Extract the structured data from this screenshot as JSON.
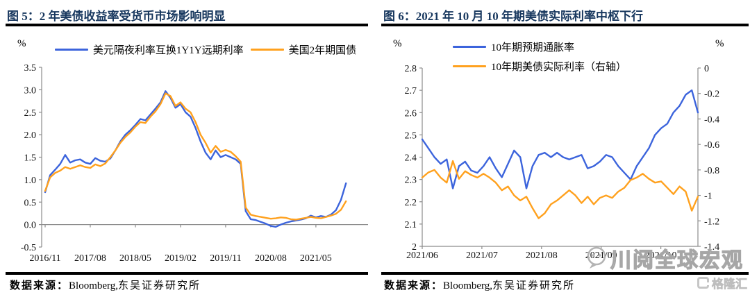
{
  "panels": {
    "left": {
      "title": "图 5：2 年美债收益率受货币市场影响明显",
      "unit": "%",
      "source": {
        "label": "数据来源：",
        "en": "Bloomberg,",
        "cn": "东吴证券研究所"
      }
    },
    "right": {
      "title": "图 6：2021 年 10 月 10 年期美债实际利率中枢下行",
      "unit_left": "%",
      "unit_right": "%",
      "source": {
        "label": "数据来源：",
        "en": "Bloomberg,",
        "cn": "东吴证券研究所"
      }
    }
  },
  "watermark": {
    "text": "川阅全球宏观",
    "brand": "格隆汇"
  },
  "colors": {
    "blue": "#3c64dc",
    "orange": "#ffa11e",
    "title_navy": "#17375e",
    "axis_gray": "#8c8c8c",
    "watermark_gray": "#c6c6c6"
  },
  "chart_data": [
    {
      "type": "line",
      "title": "2 年美债收益率受货币市场影响明显",
      "xlabel": "",
      "ylabel": "%",
      "ylim": [
        -0.5,
        3.5
      ],
      "y_tick_labels": [
        "3.5",
        "3.0",
        "2.5",
        "2.0",
        "1.5",
        "1.0",
        "0.5",
        "0.0",
        "-0.5"
      ],
      "x_axis_at_y": 0.0,
      "grid": false,
      "legend_position": "top",
      "x_tick_labels": [
        "2016/11",
        "2017/08",
        "2018/05",
        "2019/02",
        "2019/11",
        "2020/08",
        "2021/05"
      ],
      "x_tick_positions_months": [
        0,
        9,
        18,
        27,
        36,
        45,
        54
      ],
      "x_domain_months": [
        0,
        64.5
      ],
      "x_start": "2016/11",
      "x_step": "1 month",
      "series": [
        {
          "name": "美元隔夜利率互换1Y1Y远期利率",
          "color_key": "blue",
          "values": [
            0.72,
            1.1,
            1.22,
            1.35,
            1.55,
            1.38,
            1.43,
            1.45,
            1.38,
            1.35,
            1.48,
            1.42,
            1.4,
            1.47,
            1.65,
            1.85,
            2.0,
            2.1,
            2.22,
            2.35,
            2.32,
            2.45,
            2.58,
            2.72,
            2.97,
            2.82,
            2.6,
            2.68,
            2.5,
            2.4,
            2.15,
            1.85,
            1.6,
            1.45,
            1.65,
            1.5,
            1.55,
            1.5,
            1.45,
            1.35,
            0.3,
            0.12,
            0.1,
            0.06,
            0.02,
            -0.03,
            -0.05,
            0.0,
            0.04,
            0.07,
            0.09,
            0.11,
            0.14,
            0.2,
            0.16,
            0.19,
            0.17,
            0.22,
            0.32,
            0.55,
            0.92
          ]
        },
        {
          "name": "美国2年期国债",
          "color_key": "orange",
          "values": [
            0.75,
            1.05,
            1.15,
            1.2,
            1.28,
            1.24,
            1.28,
            1.32,
            1.28,
            1.26,
            1.34,
            1.3,
            1.36,
            1.5,
            1.65,
            1.82,
            1.95,
            2.05,
            2.18,
            2.28,
            2.26,
            2.4,
            2.52,
            2.68,
            2.92,
            2.86,
            2.64,
            2.72,
            2.58,
            2.5,
            2.28,
            2.0,
            1.82,
            1.6,
            1.75,
            1.62,
            1.66,
            1.62,
            1.52,
            1.4,
            0.38,
            0.22,
            0.19,
            0.17,
            0.15,
            0.13,
            0.14,
            0.16,
            0.15,
            0.12,
            0.11,
            0.13,
            0.15,
            0.17,
            0.15,
            0.14,
            0.17,
            0.2,
            0.24,
            0.33,
            0.52
          ]
        }
      ]
    },
    {
      "type": "line",
      "title": "2021 年 10 月 10 年期美债实际利率中枢下行",
      "grid": false,
      "legend_position": "top",
      "x_tick_labels": [
        "2021/06",
        "2021/07",
        "2021/08",
        "2021/09",
        "2021/10"
      ],
      "x_tick_positions_months": [
        0,
        1,
        2,
        3,
        4
      ],
      "x_domain_months": [
        0,
        4.62
      ],
      "axes": {
        "left": {
          "unit": "%",
          "ylim": [
            2,
            2.8
          ],
          "y_tick_labels": [
            "2.8",
            "2.7",
            "2.6",
            "2.5",
            "2.4",
            "2.3",
            "2.2",
            "2.1",
            "2"
          ]
        },
        "right": {
          "unit": "%",
          "ylim": [
            -1.4,
            0
          ],
          "y_tick_labels": [
            "0",
            "-0.2",
            "-0.4",
            "-0.6",
            "-0.8",
            "-1",
            "-1.2",
            "-1.4"
          ]
        }
      },
      "series": [
        {
          "name": "10年期预期通胀率",
          "axis": "left",
          "color_key": "blue",
          "values": [
            2.48,
            2.44,
            2.4,
            2.37,
            2.39,
            2.26,
            2.36,
            2.38,
            2.34,
            2.33,
            2.36,
            2.4,
            2.35,
            2.31,
            2.37,
            2.43,
            2.4,
            2.26,
            2.36,
            2.41,
            2.42,
            2.4,
            2.42,
            2.4,
            2.39,
            2.4,
            2.41,
            2.35,
            2.36,
            2.38,
            2.41,
            2.4,
            2.36,
            2.33,
            2.3,
            2.36,
            2.4,
            2.44,
            2.5,
            2.53,
            2.55,
            2.6,
            2.63,
            2.68,
            2.7,
            2.6
          ]
        },
        {
          "name": "10年期美债实际利率（右轴）",
          "axis": "right",
          "color_key": "orange",
          "values": [
            -0.86,
            -0.82,
            -0.8,
            -0.86,
            -0.9,
            -0.73,
            -0.87,
            -0.81,
            -0.84,
            -0.86,
            -0.83,
            -0.86,
            -0.9,
            -0.96,
            -0.93,
            -1.0,
            -1.04,
            -1.01,
            -1.1,
            -1.18,
            -1.14,
            -1.07,
            -1.04,
            -1.0,
            -0.96,
            -1.0,
            -1.06,
            -1.01,
            -1.07,
            -1.02,
            -1.0,
            -1.02,
            -0.97,
            -0.94,
            -0.88,
            -0.86,
            -0.83,
            -0.87,
            -0.9,
            -0.89,
            -0.94,
            -0.99,
            -0.93,
            -0.97,
            -1.12,
            -1.01
          ]
        }
      ]
    }
  ]
}
